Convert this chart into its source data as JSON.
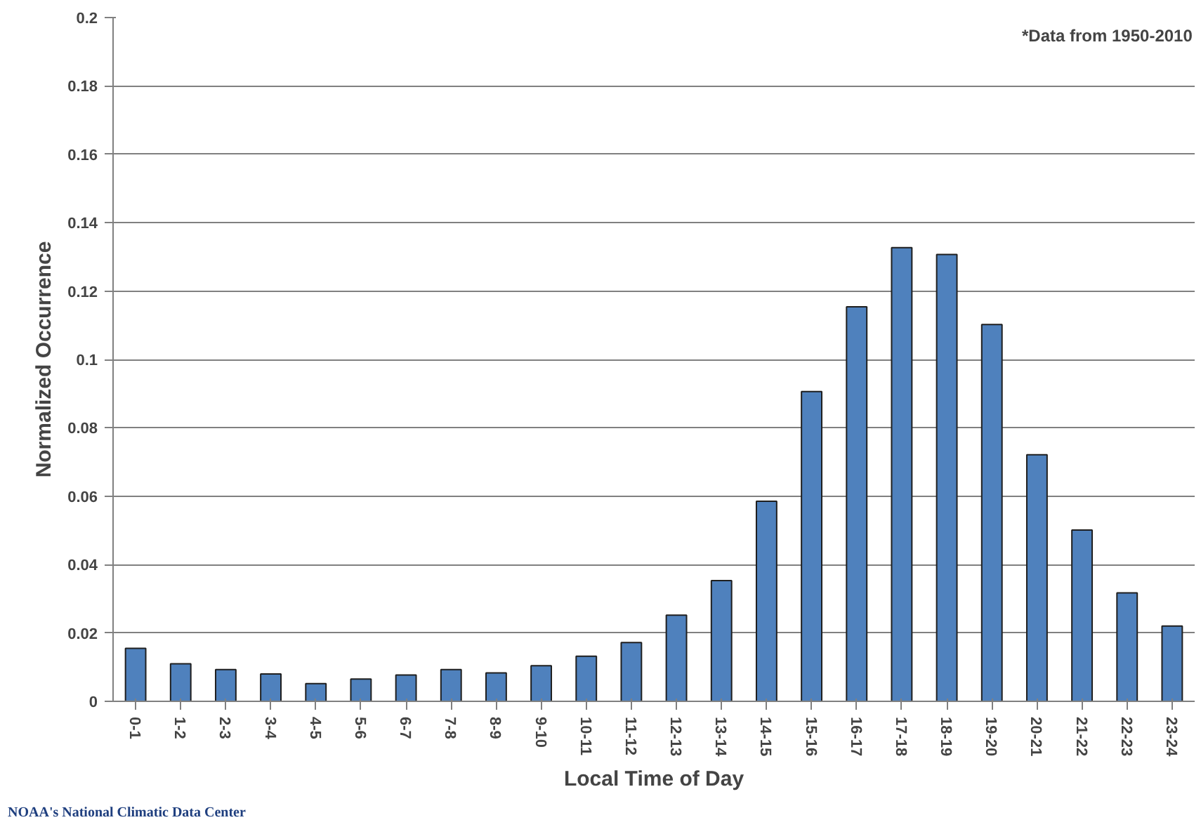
{
  "chart_data": {
    "type": "bar",
    "xlabel": "Local Time of Day",
    "ylabel": "Normalized Occurrence",
    "categories": [
      "0-1",
      "1-2",
      "2-3",
      "3-4",
      "4-5",
      "5-6",
      "6-7",
      "7-8",
      "8-9",
      "9-10",
      "10-11",
      "11-12",
      "12-13",
      "13-14",
      "14-15",
      "15-16",
      "16-17",
      "17-18",
      "18-19",
      "19-20",
      "20-21",
      "21-22",
      "22-23",
      "23-24"
    ],
    "values": [
      0.0155,
      0.011,
      0.0093,
      0.008,
      0.0052,
      0.0065,
      0.0077,
      0.0093,
      0.0083,
      0.0104,
      0.0132,
      0.0172,
      0.0252,
      0.0353,
      0.0585,
      0.0906,
      0.1154,
      0.1327,
      0.1307,
      0.1102,
      0.0721,
      0.0501,
      0.0317,
      0.022
    ],
    "color": "#4f81bd",
    "ylim": [
      0,
      0.2
    ],
    "yticks": [
      0,
      0.02,
      0.04,
      0.06,
      0.08,
      0.1,
      0.12,
      0.14,
      0.16,
      0.18,
      0.2
    ],
    "grid": "y",
    "annotations": [
      "*Data from 1950-2010",
      "NOAA's National Climatic Data Center"
    ]
  }
}
